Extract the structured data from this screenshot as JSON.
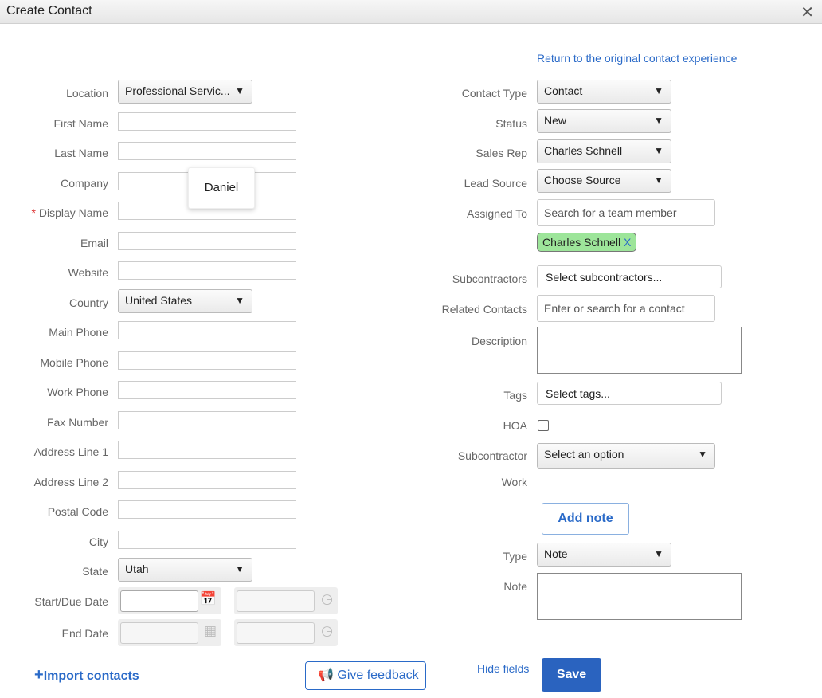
{
  "window": {
    "title": "Create Contact",
    "close_icon": "close-icon"
  },
  "return_link": "Return to the original contact experience",
  "left": {
    "location": {
      "label": "Location",
      "value": "Professional Servic..."
    },
    "fields": [
      "First Name",
      "Last Name",
      "Company",
      "Display Name",
      "Email",
      "Website"
    ],
    "required_mark": "*",
    "country": {
      "label": "Country",
      "value": "United States"
    },
    "fields2": [
      "Main Phone",
      "Mobile Phone",
      "Work Phone",
      "Fax Number",
      "Address Line 1",
      "Address Line 2",
      "Postal Code",
      "City"
    ],
    "state": {
      "label": "State",
      "value": "Utah"
    },
    "start_due_label": "Start/Due Date",
    "end_date_label": "End Date"
  },
  "tooltip": "Daniel",
  "right": {
    "contact_type": {
      "label": "Contact Type",
      "value": "Contact"
    },
    "status": {
      "label": "Status",
      "value": "New"
    },
    "sales_rep": {
      "label": "Sales Rep",
      "value": "Charles Schnell"
    },
    "lead_source": {
      "label": "Lead Source",
      "value": "Choose Source"
    },
    "assigned_to": {
      "label": "Assigned To",
      "placeholder": "Search for a team member",
      "tag": "Charles Schnell",
      "tag_remove": "X",
      "tag_color": "#9de59a"
    },
    "subcontractors": {
      "label": "Subcontractors",
      "placeholder": "Select subcontractors..."
    },
    "related": {
      "label": "Related Contacts",
      "placeholder": "Enter or search for a contact"
    },
    "description": {
      "label": "Description"
    },
    "tags": {
      "label": "Tags",
      "placeholder": "Select tags..."
    },
    "hoa": {
      "label": "HOA",
      "checked": false
    },
    "subcontractor_work": {
      "label1": "Subcontractor",
      "label2": "Work",
      "value": "Select an option"
    },
    "add_note": "Add note",
    "type": {
      "label": "Type",
      "value": "Note"
    },
    "note": {
      "label": "Note"
    }
  },
  "footer": {
    "import": "Import contacts",
    "import_plus": "+",
    "feedback": "Give feedback",
    "hide_fields": "Hide fields",
    "save": "Save"
  },
  "colors": {
    "accent": "#2a6ac8",
    "save_bg": "#2a63bf"
  }
}
